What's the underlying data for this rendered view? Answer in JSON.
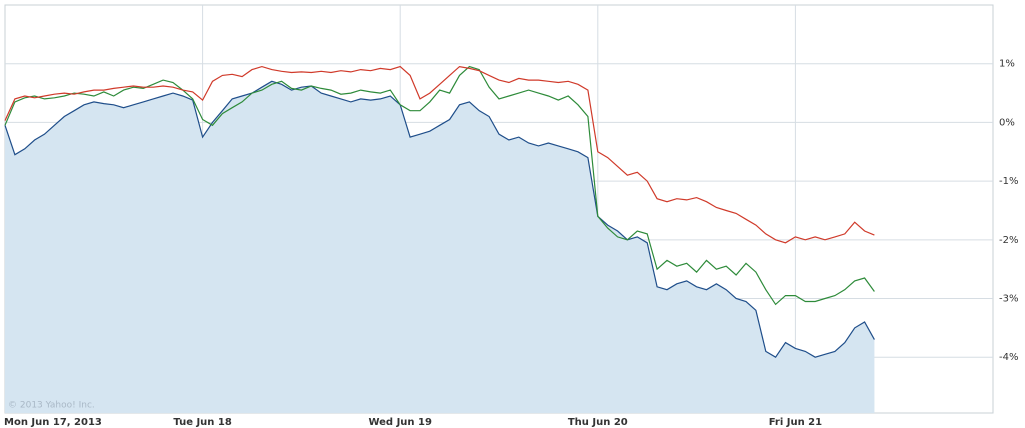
{
  "chart_data": {
    "type": "line",
    "watermark": "© 2013 Yahoo! Inc.",
    "categories": [
      "Mon Jun 17, 2013",
      null,
      null,
      null,
      null,
      null,
      null,
      null,
      null,
      null,
      null,
      null,
      null,
      null,
      null,
      null,
      null,
      null,
      null,
      null,
      "Tue Jun 18",
      null,
      null,
      null,
      null,
      null,
      null,
      null,
      null,
      null,
      null,
      null,
      null,
      null,
      null,
      null,
      null,
      null,
      null,
      null,
      "Wed Jun 19",
      null,
      null,
      null,
      null,
      null,
      null,
      null,
      null,
      null,
      null,
      null,
      null,
      null,
      null,
      null,
      null,
      null,
      null,
      null,
      "Thu Jun 20",
      null,
      null,
      null,
      null,
      null,
      null,
      null,
      null,
      null,
      null,
      null,
      null,
      null,
      null,
      null,
      null,
      null,
      null,
      null,
      "Fri Jun 21",
      null,
      null,
      null,
      null,
      null,
      null,
      null,
      null
    ],
    "series": [
      {
        "color": "#1f4e8a",
        "fill": "#d5e5f1",
        "values": [
          -0.05,
          -0.55,
          -0.45,
          -0.3,
          -0.2,
          -0.05,
          0.1,
          0.2,
          0.3,
          0.35,
          0.32,
          0.3,
          0.25,
          0.3,
          0.35,
          0.4,
          0.45,
          0.5,
          0.45,
          0.38,
          -0.25,
          0.0,
          0.2,
          0.4,
          0.45,
          0.5,
          0.6,
          0.7,
          0.65,
          0.55,
          0.6,
          0.62,
          0.5,
          0.45,
          0.4,
          0.35,
          0.4,
          0.38,
          0.4,
          0.45,
          0.3,
          -0.25,
          -0.2,
          -0.15,
          -0.05,
          0.05,
          0.3,
          0.35,
          0.2,
          0.1,
          -0.2,
          -0.3,
          -0.25,
          -0.35,
          -0.4,
          -0.35,
          -0.4,
          -0.45,
          -0.5,
          -0.6,
          -1.6,
          -1.75,
          -1.85,
          -2.0,
          -1.95,
          -2.05,
          -2.8,
          -2.85,
          -2.75,
          -2.7,
          -2.8,
          -2.85,
          -2.75,
          -2.85,
          -3.0,
          -3.05,
          -3.2,
          -3.9,
          -4.0,
          -3.75,
          -3.85,
          -3.9,
          -4.0,
          -3.95,
          -3.9,
          -3.75,
          -3.5,
          -3.4,
          -3.7
        ]
      },
      {
        "color": "#2e8b3a",
        "values": [
          -0.05,
          0.35,
          0.42,
          0.45,
          0.4,
          0.42,
          0.45,
          0.5,
          0.48,
          0.45,
          0.52,
          0.45,
          0.55,
          0.6,
          0.58,
          0.65,
          0.72,
          0.68,
          0.55,
          0.4,
          0.05,
          -0.05,
          0.15,
          0.25,
          0.35,
          0.5,
          0.55,
          0.65,
          0.7,
          0.58,
          0.55,
          0.62,
          0.58,
          0.55,
          0.48,
          0.5,
          0.55,
          0.52,
          0.5,
          0.55,
          0.3,
          0.2,
          0.2,
          0.35,
          0.55,
          0.5,
          0.8,
          0.95,
          0.9,
          0.6,
          0.4,
          0.45,
          0.5,
          0.55,
          0.5,
          0.45,
          0.38,
          0.45,
          0.3,
          0.1,
          -1.6,
          -1.8,
          -1.95,
          -2.0,
          -1.85,
          -1.9,
          -2.5,
          -2.35,
          -2.45,
          -2.4,
          -2.55,
          -2.35,
          -2.5,
          -2.45,
          -2.6,
          -2.4,
          -2.55,
          -2.85,
          -3.1,
          -2.95,
          -2.95,
          -3.05,
          -3.05,
          -3.0,
          -2.95,
          -2.85,
          -2.7,
          -2.65,
          -2.88
        ]
      },
      {
        "color": "#d03a2a",
        "values": [
          0.03,
          0.4,
          0.45,
          0.42,
          0.45,
          0.48,
          0.5,
          0.48,
          0.52,
          0.55,
          0.55,
          0.58,
          0.6,
          0.62,
          0.6,
          0.6,
          0.62,
          0.6,
          0.55,
          0.52,
          0.38,
          0.7,
          0.8,
          0.82,
          0.78,
          0.9,
          0.95,
          0.9,
          0.87,
          0.85,
          0.86,
          0.85,
          0.87,
          0.85,
          0.88,
          0.86,
          0.9,
          0.88,
          0.92,
          0.9,
          0.95,
          0.8,
          0.4,
          0.5,
          0.65,
          0.8,
          0.95,
          0.92,
          0.88,
          0.8,
          0.72,
          0.68,
          0.75,
          0.72,
          0.72,
          0.7,
          0.68,
          0.7,
          0.65,
          0.55,
          -0.5,
          -0.6,
          -0.75,
          -0.9,
          -0.85,
          -1.0,
          -1.3,
          -1.35,
          -1.3,
          -1.32,
          -1.28,
          -1.35,
          -1.45,
          -1.5,
          -1.55,
          -1.65,
          -1.75,
          -1.9,
          -2.0,
          -2.05,
          -1.95,
          -2.0,
          -1.95,
          -2.0,
          -1.95,
          -1.9,
          -1.7,
          -1.85,
          -1.92
        ]
      }
    ],
    "ylim": [
      -4.95,
      2
    ],
    "yticks": [
      {
        "value": 1,
        "label": "1%"
      },
      {
        "value": 0,
        "label": "0%"
      },
      {
        "value": -1,
        "label": "-1%"
      },
      {
        "value": -2,
        "label": "-2%"
      },
      {
        "value": -3,
        "label": "-3%"
      },
      {
        "value": -4,
        "label": "-4%"
      }
    ],
    "grid": true
  }
}
